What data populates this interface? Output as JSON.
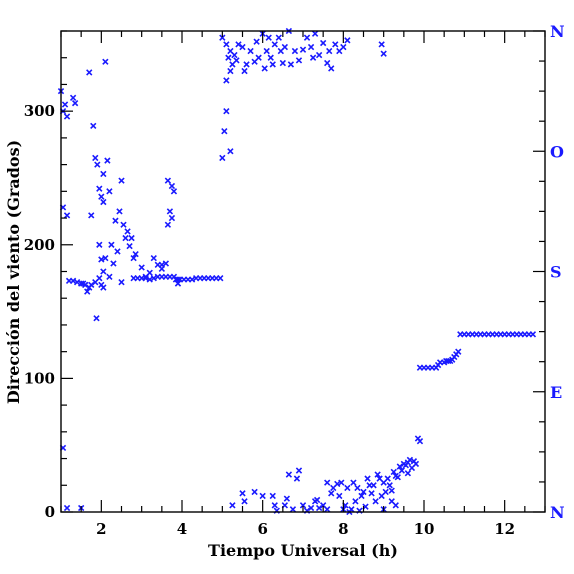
{
  "chart_data": {
    "type": "scatter",
    "title": "",
    "xlabel": "Tiempo Universal (h)",
    "ylabel": "Dirección del viento (Grados)",
    "xlim": [
      1.0,
      13.0
    ],
    "ylim": [
      0,
      360
    ],
    "x_ticks": [
      2,
      4,
      6,
      8,
      10,
      12
    ],
    "y_ticks": [
      0,
      100,
      200,
      300
    ],
    "x_minor_step": 0.5,
    "y_minor_step": 20,
    "right_axis_labels": [
      {
        "value": 0,
        "label": "N"
      },
      {
        "value": 90,
        "label": "E"
      },
      {
        "value": 180,
        "label": "S"
      },
      {
        "value": 270,
        "label": "O"
      },
      {
        "value": 360,
        "label": "N"
      }
    ],
    "marker": "x",
    "marker_color": "#1a1aff",
    "grid": false,
    "series": [
      {
        "name": "",
        "points": [
          [
            1.0,
            315
          ],
          [
            1.05,
            300
          ],
          [
            1.1,
            305
          ],
          [
            1.15,
            296
          ],
          [
            1.3,
            310
          ],
          [
            1.35,
            306
          ],
          [
            1.7,
            329
          ],
          [
            2.1,
            337
          ],
          [
            1.8,
            289
          ],
          [
            1.05,
            48
          ],
          [
            1.15,
            3
          ],
          [
            1.5,
            3
          ],
          [
            1.05,
            228
          ],
          [
            1.15,
            222
          ],
          [
            1.85,
            265
          ],
          [
            1.9,
            260
          ],
          [
            2.15,
            263
          ],
          [
            2.05,
            253
          ],
          [
            2.2,
            240
          ],
          [
            1.95,
            242
          ],
          [
            2.0,
            236
          ],
          [
            2.05,
            232
          ],
          [
            1.75,
            222
          ],
          [
            2.35,
            218
          ],
          [
            2.45,
            225
          ],
          [
            2.55,
            215
          ],
          [
            2.5,
            248
          ],
          [
            2.6,
            205
          ],
          [
            2.65,
            210
          ],
          [
            2.7,
            199
          ],
          [
            2.75,
            205
          ],
          [
            2.8,
            190
          ],
          [
            2.85,
            193
          ],
          [
            2.25,
            200
          ],
          [
            2.4,
            195
          ],
          [
            2.1,
            190
          ],
          [
            2.2,
            176
          ],
          [
            2.3,
            186
          ],
          [
            1.95,
            200
          ],
          [
            2.0,
            189
          ],
          [
            2.05,
            180
          ],
          [
            1.95,
            175
          ],
          [
            2.0,
            170
          ],
          [
            2.5,
            172
          ],
          [
            3.0,
            183
          ],
          [
            3.3,
            190
          ],
          [
            3.4,
            185
          ],
          [
            3.5,
            182
          ],
          [
            3.6,
            186
          ],
          [
            3.2,
            179
          ],
          [
            3.1,
            176
          ],
          [
            3.65,
            248
          ],
          [
            3.75,
            244
          ],
          [
            3.8,
            240
          ],
          [
            3.7,
            225
          ],
          [
            3.75,
            220
          ],
          [
            3.65,
            215
          ],
          [
            3.5,
            185
          ],
          [
            3.9,
            174
          ],
          [
            3.9,
            171
          ],
          [
            1.88,
            145
          ],
          [
            2.05,
            168
          ],
          [
            1.65,
            165
          ],
          [
            1.85,
            172
          ],
          [
            1.7,
            168
          ],
          [
            1.6,
            170
          ],
          [
            1.2,
            173
          ],
          [
            1.3,
            173
          ],
          [
            1.4,
            172
          ],
          [
            1.5,
            171
          ],
          [
            1.55,
            171
          ],
          [
            1.6,
            170
          ],
          [
            1.75,
            170
          ],
          [
            2.8,
            175
          ],
          [
            2.9,
            175
          ],
          [
            3.0,
            175
          ],
          [
            3.1,
            175
          ],
          [
            3.2,
            174
          ],
          [
            3.3,
            175
          ],
          [
            3.4,
            176
          ],
          [
            3.5,
            176
          ],
          [
            3.6,
            176
          ],
          [
            3.7,
            176
          ],
          [
            3.8,
            176
          ],
          [
            3.85,
            174
          ],
          [
            3.95,
            174
          ],
          [
            4.05,
            174
          ],
          [
            4.15,
            174
          ],
          [
            4.25,
            174
          ],
          [
            4.35,
            175
          ],
          [
            4.45,
            175
          ],
          [
            4.55,
            175
          ],
          [
            4.65,
            175
          ],
          [
            4.75,
            175
          ],
          [
            4.85,
            175
          ],
          [
            4.95,
            175
          ],
          [
            5.0,
            265
          ],
          [
            5.2,
            270
          ],
          [
            5.1,
            300
          ],
          [
            5.05,
            285
          ],
          [
            5.0,
            355
          ],
          [
            5.1,
            350
          ],
          [
            5.15,
            340
          ],
          [
            5.2,
            345
          ],
          [
            5.25,
            335
          ],
          [
            5.3,
            342
          ],
          [
            5.35,
            338
          ],
          [
            5.4,
            350
          ],
          [
            5.5,
            348
          ],
          [
            5.55,
            330
          ],
          [
            5.6,
            335
          ],
          [
            5.7,
            345
          ],
          [
            5.8,
            337
          ],
          [
            5.85,
            352
          ],
          [
            5.9,
            340
          ],
          [
            6.0,
            358
          ],
          [
            6.1,
            345
          ],
          [
            6.15,
            355
          ],
          [
            6.2,
            340
          ],
          [
            6.25,
            335
          ],
          [
            6.3,
            350
          ],
          [
            6.4,
            355
          ],
          [
            6.45,
            345
          ],
          [
            6.5,
            336
          ],
          [
            6.55,
            348
          ],
          [
            6.7,
            335
          ],
          [
            6.8,
            345
          ],
          [
            6.9,
            338
          ],
          [
            7.0,
            346
          ],
          [
            7.1,
            355
          ],
          [
            7.2,
            348
          ],
          [
            7.3,
            358
          ],
          [
            7.4,
            342
          ],
          [
            7.5,
            351
          ],
          [
            7.6,
            336
          ],
          [
            7.7,
            332
          ],
          [
            7.8,
            350
          ],
          [
            7.9,
            345
          ],
          [
            8.0,
            348
          ],
          [
            8.1,
            353
          ],
          [
            8.95,
            350
          ],
          [
            9.0,
            343
          ],
          [
            5.1,
            323
          ],
          [
            5.2,
            330
          ],
          [
            6.05,
            332
          ],
          [
            6.65,
            360
          ],
          [
            7.25,
            340
          ],
          [
            7.65,
            345
          ],
          [
            5.25,
            5
          ],
          [
            5.5,
            14
          ],
          [
            5.55,
            8
          ],
          [
            5.8,
            15
          ],
          [
            6.0,
            12
          ],
          [
            6.3,
            5
          ],
          [
            6.35,
            1
          ],
          [
            6.55,
            5
          ],
          [
            6.6,
            10
          ],
          [
            6.65,
            28
          ],
          [
            6.75,
            2
          ],
          [
            6.85,
            25
          ],
          [
            6.9,
            31
          ],
          [
            7.0,
            5
          ],
          [
            7.1,
            1
          ],
          [
            7.2,
            3
          ],
          [
            7.3,
            8
          ],
          [
            7.35,
            9
          ],
          [
            7.4,
            3
          ],
          [
            7.5,
            5
          ],
          [
            7.6,
            2
          ],
          [
            7.7,
            14
          ],
          [
            7.75,
            18
          ],
          [
            7.85,
            21
          ],
          [
            7.9,
            12
          ],
          [
            7.95,
            22
          ],
          [
            8.0,
            2
          ],
          [
            8.05,
            5
          ],
          [
            8.1,
            18
          ],
          [
            8.15,
            0
          ],
          [
            8.2,
            2
          ],
          [
            8.25,
            22
          ],
          [
            8.3,
            8
          ],
          [
            8.35,
            18
          ],
          [
            8.4,
            1
          ],
          [
            8.45,
            12
          ],
          [
            8.5,
            15
          ],
          [
            8.55,
            4
          ],
          [
            8.6,
            25
          ],
          [
            8.65,
            20
          ],
          [
            8.7,
            14
          ],
          [
            8.75,
            20
          ],
          [
            8.8,
            8
          ],
          [
            8.85,
            28
          ],
          [
            8.9,
            25
          ],
          [
            8.95,
            12
          ],
          [
            9.0,
            22
          ],
          [
            9.05,
            15
          ],
          [
            9.1,
            25
          ],
          [
            9.15,
            20
          ],
          [
            9.2,
            16
          ],
          [
            9.25,
            30
          ],
          [
            9.3,
            27
          ],
          [
            9.35,
            26
          ],
          [
            9.4,
            34
          ],
          [
            9.45,
            31
          ],
          [
            9.5,
            36
          ],
          [
            9.55,
            35
          ],
          [
            9.6,
            37
          ],
          [
            9.65,
            39
          ],
          [
            9.7,
            33
          ],
          [
            9.75,
            38
          ],
          [
            9.8,
            36
          ],
          [
            9.85,
            55
          ],
          [
            9.9,
            53
          ],
          [
            9.3,
            5
          ],
          [
            9.0,
            2
          ],
          [
            9.2,
            8
          ],
          [
            9.6,
            29
          ],
          [
            6.25,
            12
          ],
          [
            7.6,
            22
          ],
          [
            9.9,
            108
          ],
          [
            10.0,
            108
          ],
          [
            10.1,
            108
          ],
          [
            10.2,
            108
          ],
          [
            10.3,
            108
          ],
          [
            10.35,
            110
          ],
          [
            10.4,
            112
          ],
          [
            10.5,
            112
          ],
          [
            10.55,
            113
          ],
          [
            10.6,
            113
          ],
          [
            10.65,
            113
          ],
          [
            10.7,
            114
          ],
          [
            10.75,
            116
          ],
          [
            10.8,
            118
          ],
          [
            10.85,
            120
          ],
          [
            10.9,
            133
          ],
          [
            11.0,
            133
          ],
          [
            11.1,
            133
          ],
          [
            11.2,
            133
          ],
          [
            11.3,
            133
          ],
          [
            11.4,
            133
          ],
          [
            11.5,
            133
          ],
          [
            11.6,
            133
          ],
          [
            11.7,
            133
          ],
          [
            11.8,
            133
          ],
          [
            11.9,
            133
          ],
          [
            12.0,
            133
          ],
          [
            12.1,
            133
          ],
          [
            12.2,
            133
          ],
          [
            12.3,
            133
          ],
          [
            12.4,
            133
          ],
          [
            12.5,
            133
          ],
          [
            12.6,
            133
          ],
          [
            12.7,
            133
          ]
        ]
      }
    ]
  }
}
